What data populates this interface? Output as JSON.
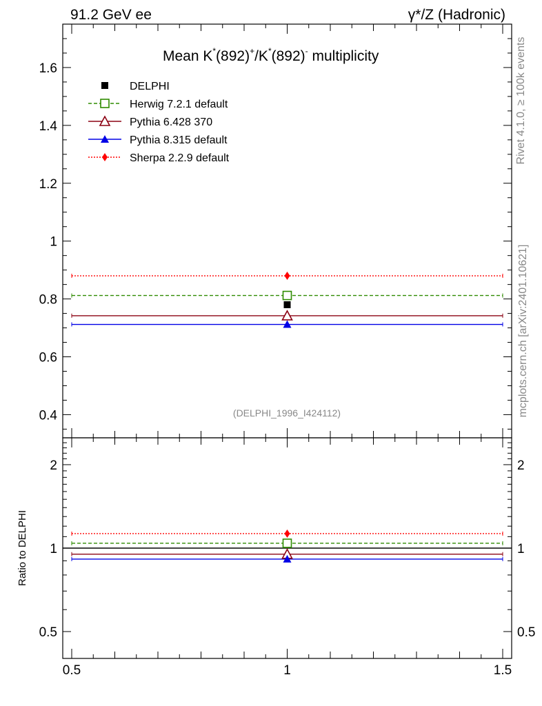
{
  "header": {
    "left": "91.2 GeV ee",
    "right": "γ*/Z (Hadronic)"
  },
  "side_text": {
    "rivet": "Rivet 4.1.0, ≥ 100k events",
    "mcplots": "mcplots.cern.ch [arXiv:2401.10621]"
  },
  "chart_data": [
    {
      "type": "scatter",
      "panel": "main",
      "title": "Mean K*(892)+/K*(892)- multiplicity",
      "title_parts": {
        "a": "Mean K",
        "sup1": "*",
        "b": "(892)",
        "sup2": "+",
        "c": "/K",
        "sup3": "*",
        "d": "(892)",
        "sup4": "-",
        "e": " multiplicity"
      },
      "analysis_id": "(DELPHI_1996_I424112)",
      "xlabel": "",
      "ylabel": "",
      "xlim": [
        0.5,
        1.5
      ],
      "ylim": [
        0.32,
        1.75
      ],
      "xticks": [
        0.5,
        1,
        1.5
      ],
      "xtick_labels": [
        "0.5",
        "1",
        "1.5"
      ],
      "yticks": [
        0.4,
        0.6,
        0.8,
        1.0,
        1.2,
        1.4,
        1.6
      ],
      "ytick_labels": [
        "0.4",
        "0.6",
        "0.8",
        "1",
        "1.2",
        "1.4",
        "1.6"
      ],
      "x": [
        1.0
      ],
      "series": [
        {
          "name": "DELPHI",
          "values": [
            0.78
          ],
          "color": "#000000",
          "marker": "square-filled",
          "line": "none"
        },
        {
          "name": "Herwig 7.2.1 default",
          "values": [
            0.812
          ],
          "color": "#2e8b00",
          "marker": "square-open",
          "line": "dashed"
        },
        {
          "name": "Pythia 6.428 370",
          "values": [
            0.742
          ],
          "color": "#8b0012",
          "marker": "triangle-open",
          "line": "solid"
        },
        {
          "name": "Pythia 8.315 default",
          "values": [
            0.712
          ],
          "color": "#0000e6",
          "marker": "triangle-filled",
          "line": "solid"
        },
        {
          "name": "Sherpa 2.2.9 default",
          "values": [
            0.88
          ],
          "color": "#ff0000",
          "marker": "diamond-filled",
          "line": "dotted"
        }
      ]
    },
    {
      "type": "scatter",
      "panel": "ratio",
      "ylabel": "Ratio to DELPHI",
      "yscale": "log",
      "xlim": [
        0.5,
        1.5
      ],
      "ylim": [
        0.4,
        2.5
      ],
      "yticks": [
        0.5,
        1,
        2
      ],
      "ytick_labels": [
        "0.5",
        "1",
        "2"
      ],
      "x": [
        1.0
      ],
      "series": [
        {
          "name": "DELPHI",
          "values": [
            1.0
          ],
          "color": "#000000",
          "marker": "none",
          "line": "solid"
        },
        {
          "name": "Herwig 7.2.1 default",
          "values": [
            1.041
          ],
          "color": "#2e8b00",
          "marker": "square-open",
          "line": "dashed"
        },
        {
          "name": "Pythia 6.428 370",
          "values": [
            0.951
          ],
          "color": "#8b0012",
          "marker": "triangle-open",
          "line": "solid"
        },
        {
          "name": "Pythia 8.315 default",
          "values": [
            0.913
          ],
          "color": "#0000e6",
          "marker": "triangle-filled",
          "line": "solid"
        },
        {
          "name": "Sherpa 2.2.9 default",
          "values": [
            1.128
          ],
          "color": "#ff0000",
          "marker": "diamond-filled",
          "line": "dotted"
        }
      ]
    }
  ]
}
